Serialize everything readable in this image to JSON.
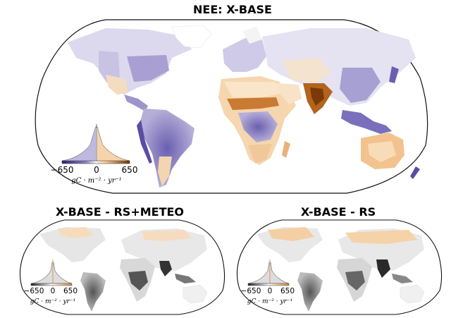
{
  "panels": {
    "main": {
      "title": "NEE: X-BASE"
    },
    "left": {
      "title": "X-BASE - RS+METEO"
    },
    "right": {
      "title": "X-BASE - RS"
    }
  },
  "colorbar": {
    "ticks": [
      "−650",
      "0",
      "650"
    ],
    "unit_label": "gC · m⁻² · yr⁻¹"
  },
  "colors": {
    "uptake": "#4b3b97",
    "release": "#b8651f",
    "release_light": "#f6d3a8",
    "uptake_light": "#b9b4dc",
    "land_neutral": "#f0f0f0",
    "diff_dark": "#3a3a3a"
  }
}
